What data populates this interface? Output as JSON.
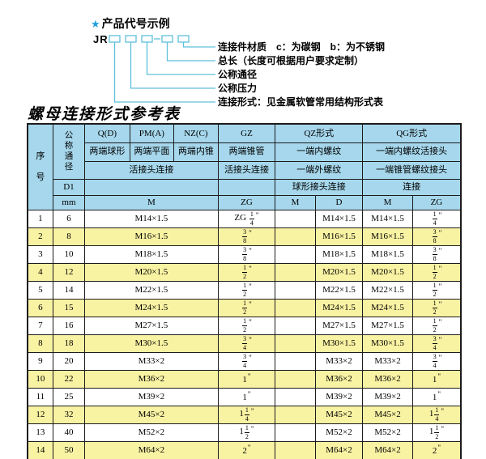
{
  "diagram": {
    "star": "★",
    "title": "产品代号示例",
    "prefix": "JR",
    "labels": [
      "连接件材质　c：为碳钢　b：为不锈钢",
      "总长（长度可根据用户要求定制）",
      "公称通径",
      "公称压力",
      "连接形式：见金属软管常用结构形式表"
    ]
  },
  "table": {
    "title": "螺母连接形式参考表",
    "header": {
      "serial": "序号",
      "nominal_dia": "公称通径",
      "d1": "D1",
      "mm": "mm",
      "q": "Q(D)",
      "pm": "PM(A)",
      "nz": "NZ(C)",
      "gz": "GZ",
      "qz": "QZ形式",
      "qg": "QG形式",
      "q_desc": "两端球形",
      "pm_desc": "两端平面",
      "nz_desc": "两端内锥",
      "gz_desc": "两端锥管",
      "qz_desc": "一端内螺纹",
      "qg_desc": "一端内螺纹活接头",
      "union_conn": "活接头连接",
      "gz_conn": "活接头连接",
      "qz_desc2": "一端外螺纹",
      "qg_desc2": "一端锥管螺纹接头",
      "qz_conn": "球形接头连接",
      "qg_conn": "连接",
      "m_label": "M",
      "zg_label": "ZG",
      "qz_m_label": "M",
      "qz_d_label": "D",
      "qg_m_label": "M",
      "qg_zg_label": "ZG"
    },
    "rows": [
      {
        "no": "1",
        "mm": "6",
        "m": "M14×1.5",
        "zg": "ZG {1/4}\"",
        "qz_m": "",
        "qz_d": "M14×1.5",
        "qg_m": "M14×1.5",
        "qg_zg": "{1/4}\""
      },
      {
        "no": "2",
        "mm": "8",
        "m": "M16×1.5",
        "zg": "{3/8}\"",
        "qz_m": "",
        "qz_d": "M16×1.5",
        "qg_m": "M16×1.5",
        "qg_zg": "{3/8}\""
      },
      {
        "no": "3",
        "mm": "10",
        "m": "M18×1.5",
        "zg": "{3/8}\"",
        "qz_m": "",
        "qz_d": "M18×1.5",
        "qg_m": "M18×1.5",
        "qg_zg": "{3/8}\""
      },
      {
        "no": "4",
        "mm": "12",
        "m": "M20×1.5",
        "zg": "{1/2}\"",
        "qz_m": "",
        "qz_d": "M20×1.5",
        "qg_m": "M20×1.5",
        "qg_zg": "{1/2}\""
      },
      {
        "no": "5",
        "mm": "14",
        "m": "M22×1.5",
        "zg": "{1/2}\"",
        "qz_m": "",
        "qz_d": "M22×1.5",
        "qg_m": "M22×1.5",
        "qg_zg": "{1/2}\""
      },
      {
        "no": "6",
        "mm": "15",
        "m": "M24×1.5",
        "zg": "{1/2}\"",
        "qz_m": "",
        "qz_d": "M24×1.5",
        "qg_m": "M24×1.5",
        "qg_zg": "{1/2}\""
      },
      {
        "no": "7",
        "mm": "16",
        "m": "M27×1.5",
        "zg": "{1/2}\"",
        "qz_m": "",
        "qz_d": "M27×1.5",
        "qg_m": "M27×1.5",
        "qg_zg": "{1/2}\""
      },
      {
        "no": "8",
        "mm": "18",
        "m": "M30×1.5",
        "zg": "{3/4}\"",
        "qz_m": "",
        "qz_d": "M30×1.5",
        "qg_m": "M30×1.5",
        "qg_zg": "{3/4}\""
      },
      {
        "no": "9",
        "mm": "20",
        "m": "M33×2",
        "zg": "{3/4}\"",
        "qz_m": "",
        "qz_d": "M33×2",
        "qg_m": "M33×2",
        "qg_zg": "{3/4}\""
      },
      {
        "no": "10",
        "mm": "22",
        "m": "M36×2",
        "zg": "1\"",
        "qz_m": "",
        "qz_d": "M36×2",
        "qg_m": "M36×2",
        "qg_zg": "1\""
      },
      {
        "no": "11",
        "mm": "25",
        "m": "M39×2",
        "zg": "1\"",
        "qz_m": "",
        "qz_d": "M39×2",
        "qg_m": "M39×2",
        "qg_zg": "1\""
      },
      {
        "no": "12",
        "mm": "32",
        "m": "M45×2",
        "zg": "1{1/4}\"",
        "qz_m": "",
        "qz_d": "M45×2",
        "qg_m": "M45×2",
        "qg_zg": "1{1/4}\""
      },
      {
        "no": "13",
        "mm": "40",
        "m": "M52×2",
        "zg": "1{1/2}\"",
        "qz_m": "",
        "qz_d": "M52×2",
        "qg_m": "M52×2",
        "qg_zg": "1{1/2}\""
      },
      {
        "no": "14",
        "mm": "50",
        "m": "M64×2",
        "zg": "2\"",
        "qz_m": "",
        "qz_d": "M64×2",
        "qg_m": "M64×2",
        "qg_zg": "2\""
      }
    ]
  },
  "colors": {
    "header_bg": "#a6d7ec",
    "row_alt_bg": "#f8f2a3",
    "row_bg": "#ffffff",
    "border": "#1c1c1c",
    "diagram_line": "#5fc0dc",
    "star": "#1f9fd8",
    "text": "#000000"
  }
}
